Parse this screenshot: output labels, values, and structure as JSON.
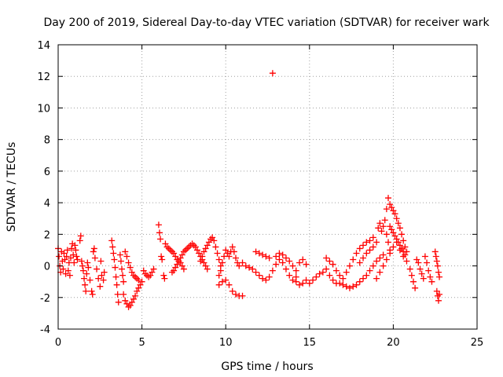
{
  "chart_data": {
    "type": "scatter",
    "title": "Day 200 of 2019, Sidereal Day-to-day VTEC variation (SDTVAR) for receiver wark",
    "xlabel": "GPS time / hours",
    "ylabel": "SDTVAR / TECUs",
    "xlim": [
      0,
      25
    ],
    "ylim": [
      -4,
      14
    ],
    "xticks": [
      0,
      5,
      10,
      15,
      20,
      25
    ],
    "yticks": [
      -4,
      -2,
      0,
      2,
      4,
      6,
      8,
      10,
      12,
      14
    ],
    "grid": true,
    "marker": "+",
    "color": "#ff0000",
    "series": [
      {
        "name": "SDTVAR",
        "points": [
          [
            0.0,
            1.1
          ],
          [
            0.05,
            0.6
          ],
          [
            0.1,
            0.0
          ],
          [
            0.15,
            -0.4
          ],
          [
            0.2,
            0.9
          ],
          [
            0.25,
            0.3
          ],
          [
            0.3,
            -0.2
          ],
          [
            0.35,
            0.8
          ],
          [
            0.4,
            0.4
          ],
          [
            0.45,
            -0.5
          ],
          [
            0.5,
            0.6
          ],
          [
            0.55,
            1.0
          ],
          [
            0.6,
            -0.3
          ],
          [
            0.65,
            0.2
          ],
          [
            0.7,
            -0.6
          ],
          [
            0.75,
            0.5
          ],
          [
            0.8,
            1.1
          ],
          [
            0.85,
            1.4
          ],
          [
            0.9,
            0.7
          ],
          [
            0.95,
            0.2
          ],
          [
            1.0,
            1.3
          ],
          [
            1.05,
            1.0
          ],
          [
            1.1,
            0.6
          ],
          [
            1.15,
            0.4
          ],
          [
            1.3,
            1.6
          ],
          [
            1.35,
            1.9
          ],
          [
            1.4,
            0.3
          ],
          [
            1.45,
            0.0
          ],
          [
            1.5,
            -0.3
          ],
          [
            1.55,
            -0.8
          ],
          [
            1.6,
            -1.2
          ],
          [
            1.65,
            -1.6
          ],
          [
            1.7,
            -0.5
          ],
          [
            1.75,
            0.2
          ],
          [
            1.8,
            -0.1
          ],
          [
            1.9,
            -0.9
          ],
          [
            2.0,
            -1.6
          ],
          [
            2.05,
            -1.8
          ],
          [
            2.1,
            0.9
          ],
          [
            2.15,
            1.1
          ],
          [
            2.2,
            0.5
          ],
          [
            2.3,
            -0.2
          ],
          [
            2.4,
            -0.8
          ],
          [
            2.5,
            -1.3
          ],
          [
            2.55,
            0.3
          ],
          [
            2.6,
            -0.6
          ],
          [
            2.7,
            -0.9
          ],
          [
            2.75,
            -0.4
          ],
          [
            3.2,
            1.6
          ],
          [
            3.25,
            1.2
          ],
          [
            3.3,
            0.8
          ],
          [
            3.35,
            0.4
          ],
          [
            3.4,
            -0.1
          ],
          [
            3.45,
            -0.7
          ],
          [
            3.5,
            -1.2
          ],
          [
            3.55,
            -1.8
          ],
          [
            3.6,
            -2.3
          ],
          [
            3.7,
            0.7
          ],
          [
            3.75,
            0.3
          ],
          [
            3.8,
            -0.2
          ],
          [
            3.85,
            -0.6
          ],
          [
            3.9,
            -1.0
          ],
          [
            4.0,
            0.9
          ],
          [
            4.1,
            0.6
          ],
          [
            4.2,
            0.2
          ],
          [
            4.3,
            -0.1
          ],
          [
            4.4,
            -0.4
          ],
          [
            4.5,
            -0.6
          ],
          [
            4.6,
            -0.7
          ],
          [
            4.7,
            -0.8
          ],
          [
            4.8,
            -0.9
          ],
          [
            3.9,
            -1.8
          ],
          [
            4.0,
            -2.2
          ],
          [
            4.1,
            -2.4
          ],
          [
            4.2,
            -2.6
          ],
          [
            4.3,
            -2.5
          ],
          [
            4.4,
            -2.3
          ],
          [
            4.5,
            -2.1
          ],
          [
            4.6,
            -1.9
          ],
          [
            4.7,
            -1.6
          ],
          [
            4.8,
            -1.4
          ],
          [
            4.9,
            -1.2
          ],
          [
            5.0,
            -1.0
          ],
          [
            5.1,
            -0.3
          ],
          [
            5.2,
            -0.5
          ],
          [
            5.3,
            -0.6
          ],
          [
            5.4,
            -0.7
          ],
          [
            5.5,
            -0.6
          ],
          [
            5.6,
            -0.4
          ],
          [
            5.7,
            -0.2
          ],
          [
            6.0,
            2.6
          ],
          [
            6.05,
            2.1
          ],
          [
            6.1,
            1.7
          ],
          [
            6.15,
            0.6
          ],
          [
            6.2,
            0.4
          ],
          [
            6.3,
            -0.6
          ],
          [
            6.35,
            -0.8
          ],
          [
            6.4,
            1.4
          ],
          [
            6.5,
            1.2
          ],
          [
            6.6,
            1.1
          ],
          [
            6.7,
            1.0
          ],
          [
            6.8,
            0.9
          ],
          [
            6.9,
            0.8
          ],
          [
            7.0,
            0.6
          ],
          [
            7.1,
            0.4
          ],
          [
            7.2,
            0.3
          ],
          [
            7.3,
            0.2
          ],
          [
            7.4,
            0.0
          ],
          [
            7.5,
            -0.2
          ],
          [
            6.8,
            -0.4
          ],
          [
            6.9,
            -0.3
          ],
          [
            7.0,
            -0.1
          ],
          [
            7.1,
            0.1
          ],
          [
            7.2,
            0.3
          ],
          [
            7.3,
            0.5
          ],
          [
            7.4,
            0.7
          ],
          [
            7.5,
            0.9
          ],
          [
            7.6,
            1.0
          ],
          [
            7.7,
            1.1
          ],
          [
            7.8,
            1.2
          ],
          [
            7.9,
            1.3
          ],
          [
            8.0,
            1.4
          ],
          [
            8.1,
            1.3
          ],
          [
            8.2,
            1.2
          ],
          [
            8.3,
            1.0
          ],
          [
            8.4,
            0.8
          ],
          [
            8.5,
            0.6
          ],
          [
            8.6,
            0.4
          ],
          [
            8.7,
            0.2
          ],
          [
            8.8,
            0.0
          ],
          [
            8.9,
            -0.2
          ],
          [
            8.5,
            0.3
          ],
          [
            8.6,
            0.6
          ],
          [
            8.7,
            0.9
          ],
          [
            8.8,
            1.1
          ],
          [
            8.9,
            1.3
          ],
          [
            9.0,
            1.5
          ],
          [
            9.1,
            1.7
          ],
          [
            9.2,
            1.8
          ],
          [
            9.3,
            1.6
          ],
          [
            9.4,
            1.2
          ],
          [
            9.5,
            0.8
          ],
          [
            9.6,
            0.4
          ],
          [
            9.7,
            0.0
          ],
          [
            9.6,
            -0.6
          ],
          [
            9.7,
            -0.3
          ],
          [
            9.8,
            0.2
          ],
          [
            9.9,
            0.6
          ],
          [
            10.0,
            1.0
          ],
          [
            10.1,
            0.8
          ],
          [
            10.2,
            0.6
          ],
          [
            10.3,
            0.9
          ],
          [
            10.4,
            1.2
          ],
          [
            10.5,
            0.9
          ],
          [
            10.6,
            0.5
          ],
          [
            10.7,
            0.2
          ],
          [
            10.8,
            0.0
          ],
          [
            9.6,
            -1.2
          ],
          [
            9.8,
            -1.0
          ],
          [
            10.0,
            -0.9
          ],
          [
            10.2,
            -1.2
          ],
          [
            10.4,
            -1.6
          ],
          [
            10.6,
            -1.8
          ],
          [
            10.8,
            -1.9
          ],
          [
            11.0,
            -1.9
          ],
          [
            11.0,
            0.2
          ],
          [
            11.2,
            0.0
          ],
          [
            11.4,
            -0.1
          ],
          [
            11.6,
            -0.2
          ],
          [
            11.8,
            -0.4
          ],
          [
            12.0,
            -0.6
          ],
          [
            12.2,
            -0.8
          ],
          [
            12.4,
            -0.9
          ],
          [
            12.6,
            -0.7
          ],
          [
            12.8,
            -0.3
          ],
          [
            13.0,
            0.1
          ],
          [
            13.2,
            0.4
          ],
          [
            13.4,
            0.2
          ],
          [
            13.6,
            -0.2
          ],
          [
            13.8,
            -0.6
          ],
          [
            14.0,
            -0.9
          ],
          [
            14.2,
            -0.7
          ],
          [
            11.8,
            0.9
          ],
          [
            12.0,
            0.8
          ],
          [
            12.2,
            0.7
          ],
          [
            12.4,
            0.6
          ],
          [
            12.6,
            0.5
          ],
          [
            12.8,
            12.2
          ],
          [
            13.0,
            0.6
          ],
          [
            13.2,
            0.8
          ],
          [
            13.4,
            0.7
          ],
          [
            13.6,
            0.5
          ],
          [
            13.8,
            0.3
          ],
          [
            14.0,
            0.0
          ],
          [
            14.2,
            -0.3
          ],
          [
            14.4,
            0.2
          ],
          [
            14.6,
            0.4
          ],
          [
            14.8,
            0.1
          ],
          [
            14.2,
            -1.0
          ],
          [
            14.4,
            -1.2
          ],
          [
            14.6,
            -1.1
          ],
          [
            14.8,
            -0.9
          ],
          [
            15.0,
            -1.1
          ],
          [
            15.2,
            -0.9
          ],
          [
            15.4,
            -0.7
          ],
          [
            15.6,
            -0.5
          ],
          [
            15.8,
            -0.4
          ],
          [
            16.0,
            -0.2
          ],
          [
            16.2,
            -0.6
          ],
          [
            16.4,
            -0.9
          ],
          [
            16.6,
            -1.1
          ],
          [
            16.0,
            0.5
          ],
          [
            16.2,
            0.3
          ],
          [
            16.4,
            0.1
          ],
          [
            16.6,
            -0.3
          ],
          [
            16.8,
            -0.6
          ],
          [
            17.0,
            -0.8
          ],
          [
            17.2,
            -0.4
          ],
          [
            17.4,
            0.0
          ],
          [
            17.6,
            0.4
          ],
          [
            17.8,
            0.8
          ],
          [
            18.0,
            1.1
          ],
          [
            18.2,
            1.3
          ],
          [
            18.4,
            1.5
          ],
          [
            18.6,
            1.6
          ],
          [
            18.8,
            1.8
          ],
          [
            16.8,
            -1.1
          ],
          [
            17.0,
            -1.2
          ],
          [
            17.2,
            -1.3
          ],
          [
            17.4,
            -1.4
          ],
          [
            17.6,
            -1.3
          ],
          [
            17.8,
            -1.2
          ],
          [
            18.0,
            -1.0
          ],
          [
            18.2,
            -0.8
          ],
          [
            18.4,
            -0.6
          ],
          [
            18.6,
            -0.3
          ],
          [
            18.8,
            0.0
          ],
          [
            19.0,
            0.3
          ],
          [
            19.2,
            0.5
          ],
          [
            19.4,
            0.7
          ],
          [
            18.0,
            0.2
          ],
          [
            18.2,
            0.5
          ],
          [
            18.4,
            0.8
          ],
          [
            18.6,
            1.0
          ],
          [
            18.8,
            1.2
          ],
          [
            19.0,
            1.5
          ],
          [
            19.1,
            2.4
          ],
          [
            19.2,
            2.7
          ],
          [
            19.3,
            2.2
          ],
          [
            19.4,
            2.5
          ],
          [
            19.5,
            2.9
          ],
          [
            19.6,
            2.0
          ],
          [
            19.7,
            1.5
          ],
          [
            19.8,
            1.0
          ],
          [
            19.6,
            3.6
          ],
          [
            19.7,
            4.3
          ],
          [
            19.8,
            3.9
          ],
          [
            19.9,
            3.7
          ],
          [
            20.0,
            3.5
          ],
          [
            20.1,
            3.3
          ],
          [
            20.2,
            3.0
          ],
          [
            20.3,
            2.7
          ],
          [
            20.4,
            2.4
          ],
          [
            20.5,
            2.0
          ],
          [
            20.6,
            1.6
          ],
          [
            20.7,
            1.2
          ],
          [
            20.8,
            0.9
          ],
          [
            19.8,
            2.5
          ],
          [
            19.9,
            2.3
          ],
          [
            20.0,
            2.1
          ],
          [
            20.1,
            1.9
          ],
          [
            20.2,
            1.7
          ],
          [
            20.3,
            1.5
          ],
          [
            20.4,
            1.3
          ],
          [
            20.5,
            1.1
          ],
          [
            20.6,
            0.9
          ],
          [
            20.7,
            0.7
          ],
          [
            19.0,
            -0.8
          ],
          [
            19.2,
            -0.4
          ],
          [
            19.4,
            0.0
          ],
          [
            19.6,
            0.4
          ],
          [
            19.8,
            0.8
          ],
          [
            20.0,
            1.2
          ],
          [
            20.2,
            1.5
          ],
          [
            20.4,
            1.0
          ],
          [
            20.6,
            0.6
          ],
          [
            20.8,
            0.3
          ],
          [
            21.0,
            -0.2
          ],
          [
            21.1,
            -0.6
          ],
          [
            21.2,
            -1.0
          ],
          [
            21.3,
            -1.4
          ],
          [
            21.4,
            0.4
          ],
          [
            21.5,
            0.2
          ],
          [
            21.6,
            -0.2
          ],
          [
            21.7,
            -0.5
          ],
          [
            21.8,
            -0.8
          ],
          [
            21.9,
            0.6
          ],
          [
            22.0,
            0.2
          ],
          [
            22.1,
            -0.3
          ],
          [
            22.2,
            -0.7
          ],
          [
            22.3,
            -1.0
          ],
          [
            22.5,
            0.9
          ],
          [
            22.55,
            0.6
          ],
          [
            22.6,
            0.3
          ],
          [
            22.65,
            0.0
          ],
          [
            22.7,
            -0.4
          ],
          [
            22.75,
            -0.7
          ],
          [
            22.6,
            -1.6
          ],
          [
            22.65,
            -1.9
          ],
          [
            22.7,
            -2.2
          ],
          [
            22.75,
            -1.8
          ]
        ]
      }
    ]
  }
}
